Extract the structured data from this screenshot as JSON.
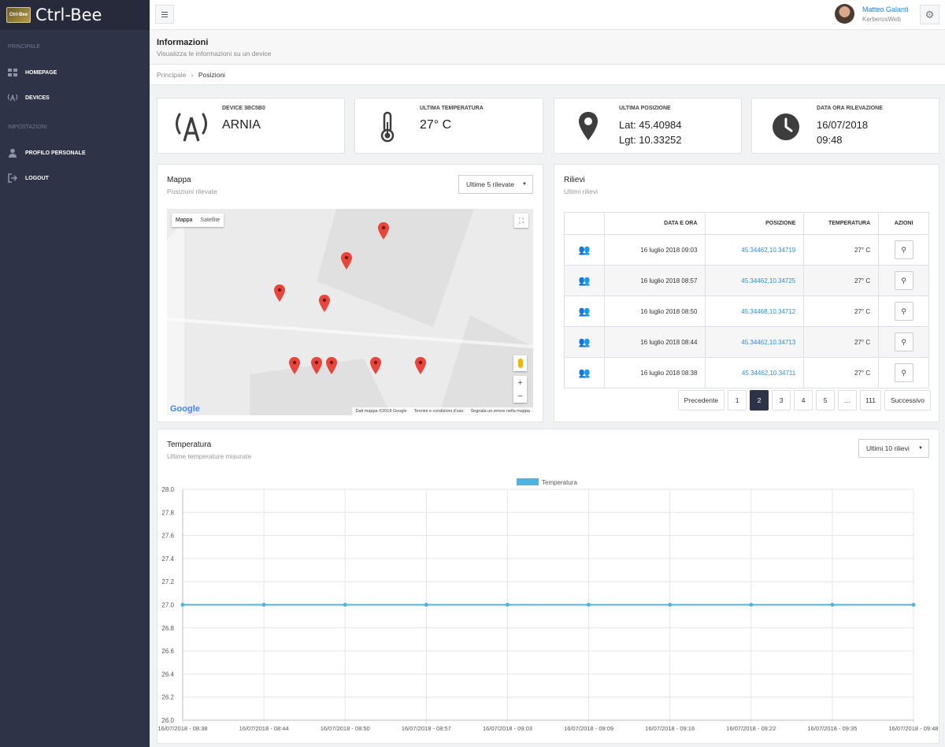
{
  "app": {
    "logo_badge": "Ctrl-Bee",
    "title": "Ctrl-Bee"
  },
  "sidebar": {
    "sections": [
      {
        "title": "PRINCIPALE",
        "items": [
          {
            "label": "HOMEPAGE",
            "icon": "dashboard-icon"
          },
          {
            "label": "DEVICES",
            "icon": "antenna-icon"
          }
        ]
      },
      {
        "title": "IMPOSTAZIONI",
        "items": [
          {
            "label": "PROFILO PERSONALE",
            "icon": "user-icon"
          },
          {
            "label": "LOGOUT",
            "icon": "logout-icon"
          }
        ]
      }
    ]
  },
  "user": {
    "name": "Matteo Galanti",
    "company": "KerberosWeb"
  },
  "page": {
    "title": "Informazioni",
    "subtitle": "Visualizza le informazioni su un device"
  },
  "breadcrumb": {
    "home": "Principale",
    "separator": "›",
    "current": "Posizioni"
  },
  "stats": {
    "device": {
      "label": "DEVICE 3BC5B0",
      "value": "ARNIA"
    },
    "temperature": {
      "label": "ULTIMA TEMPERATURA",
      "value": "27° C"
    },
    "position": {
      "label": "ULTIMA POSIZIONE",
      "lat": "Lat: 45.40984",
      "lgt": "Lgt: 10.33252"
    },
    "datetime": {
      "label": "DATA ORA RILEVAZIONE",
      "date": "16/07/2018",
      "time": "09:48"
    }
  },
  "map_panel": {
    "title": "Mappa",
    "subtitle": "Posizioni rilevate",
    "select": "Ultime 5 rilevate",
    "tabs": [
      "Mappa",
      "Satellite"
    ],
    "google": "Google",
    "footer": [
      "Dati mappa ©2018 Google",
      "Termini e condizioni d'uso",
      "Segnala un errore nella mappa"
    ]
  },
  "rilievi": {
    "title": "Rilievi",
    "subtitle": "Ultimi rilievi",
    "headers": [
      "",
      "DATA E ORA",
      "POSIZIONE",
      "TEMPERATURA",
      "AZIONI"
    ],
    "rows": [
      {
        "date": "16 luglio 2018 09:03",
        "pos": "45.34462,10.34719",
        "temp": "27° C"
      },
      {
        "date": "16 luglio 2018 08:57",
        "pos": "45.34462,10.34725",
        "temp": "27° C"
      },
      {
        "date": "16 luglio 2018 08:50",
        "pos": "45.34468,10.34712",
        "temp": "27° C"
      },
      {
        "date": "16 luglio 2018 08:44",
        "pos": "45.34462,10.34713",
        "temp": "27° C"
      },
      {
        "date": "16 luglio 2018 08:38",
        "pos": "45.34462,10.34711",
        "temp": "27° C"
      }
    ],
    "pager": [
      "Precedente",
      "1",
      "2",
      "3",
      "4",
      "5",
      "…",
      "111",
      "Successivo"
    ],
    "pager_active": "2"
  },
  "temp_panel": {
    "title": "Temperatura",
    "subtitle": "Ultime temperature misurate",
    "select": "Ultimi 10 rilievi"
  },
  "colors": {
    "sidebar": "#2e3347",
    "accent_link": "#2b8fd4",
    "line": "#4fb3e0",
    "bee": "#d9263b"
  },
  "chart_data": {
    "type": "line",
    "x": [
      "16/07/2018 - 08:38",
      "16/07/2018 - 08:44",
      "16/07/2018 - 08:50",
      "16/07/2018 - 08:57",
      "16/07/2018 - 09:03",
      "16/07/2018 - 09:09",
      "16/07/2018 - 09:16",
      "16/07/2018 - 09:22",
      "16/07/2018 - 09:35",
      "16/07/2018 - 09:48"
    ],
    "series": [
      {
        "name": "Temperatura",
        "values": [
          27.0,
          27.0,
          27.0,
          27.0,
          27.0,
          27.0,
          27.0,
          27.0,
          27.0,
          27.0
        ]
      }
    ],
    "ylim": [
      26.0,
      28.0
    ],
    "yticks": [
      "28.0",
      "27.8",
      "27.6",
      "27.4",
      "27.2",
      "27.0",
      "26.8",
      "26.6",
      "26.4",
      "26.2",
      "26.0"
    ],
    "grid": true,
    "legend": "top-center"
  }
}
